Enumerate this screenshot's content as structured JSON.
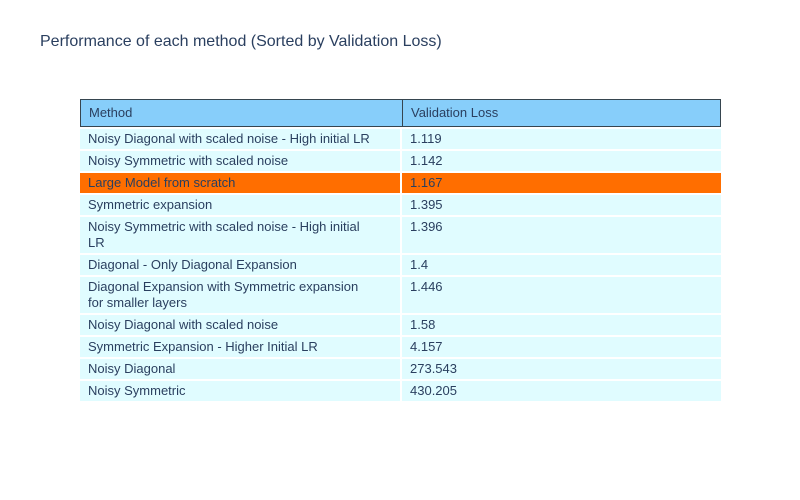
{
  "chart_data": {
    "type": "table",
    "title": "Performance of each method (Sorted by Validation Loss)",
    "columns": [
      "Method",
      "Validation Loss"
    ],
    "rows": [
      {
        "method": "Noisy Diagonal with scaled noise - High initial LR",
        "validation_loss": "1.119",
        "highlighted": false
      },
      {
        "method": "Noisy Symmetric with scaled noise",
        "validation_loss": "1.142",
        "highlighted": false
      },
      {
        "method": "Large Model from scratch",
        "validation_loss": "1.167",
        "highlighted": true
      },
      {
        "method": "Symmetric expansion",
        "validation_loss": "1.395",
        "highlighted": false
      },
      {
        "method": "Noisy Symmetric with scaled noise - High initial LR",
        "validation_loss": "1.396",
        "highlighted": false
      },
      {
        "method": "Diagonal - Only Diagonal Expansion",
        "validation_loss": "1.4",
        "highlighted": false
      },
      {
        "method": "Diagonal Expansion with Symmetric expansion for smaller layers",
        "validation_loss": "1.446",
        "highlighted": false
      },
      {
        "method": "Noisy Diagonal with scaled noise",
        "validation_loss": "1.58",
        "highlighted": false
      },
      {
        "method": "Symmetric Expansion - Higher Initial LR",
        "validation_loss": "4.157",
        "highlighted": false
      },
      {
        "method": "Noisy Diagonal",
        "validation_loss": "273.543",
        "highlighted": false
      },
      {
        "method": "Noisy Symmetric",
        "validation_loss": "430.205",
        "highlighted": false
      }
    ]
  },
  "colors": {
    "header-bg": "#87CEFA",
    "header-border": "#36454F",
    "row-bg": "#E0FCFF",
    "highlight-bg": "#FF6E00",
    "text": "#2A3F5F",
    "row-separator": "#FFFFFF",
    "page-bg": "#FFFFFF"
  }
}
